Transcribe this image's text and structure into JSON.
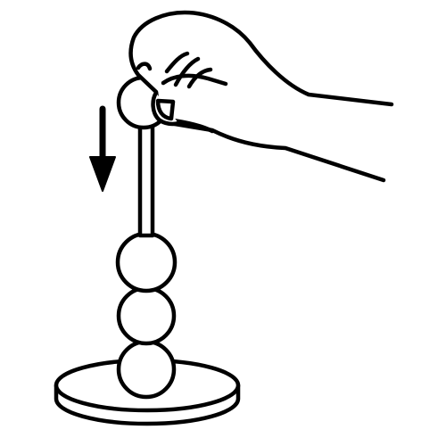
{
  "illustration": {
    "stroke_color": "#000000",
    "fill_color": "#ffffff",
    "icons": {
      "hand": "hand-pinching-icon",
      "arrow": "arrow-down-icon",
      "rod": "rod-icon",
      "beads": "bead-icon",
      "base": "base-disc-icon"
    },
    "bead_count_on_rod": 3
  }
}
